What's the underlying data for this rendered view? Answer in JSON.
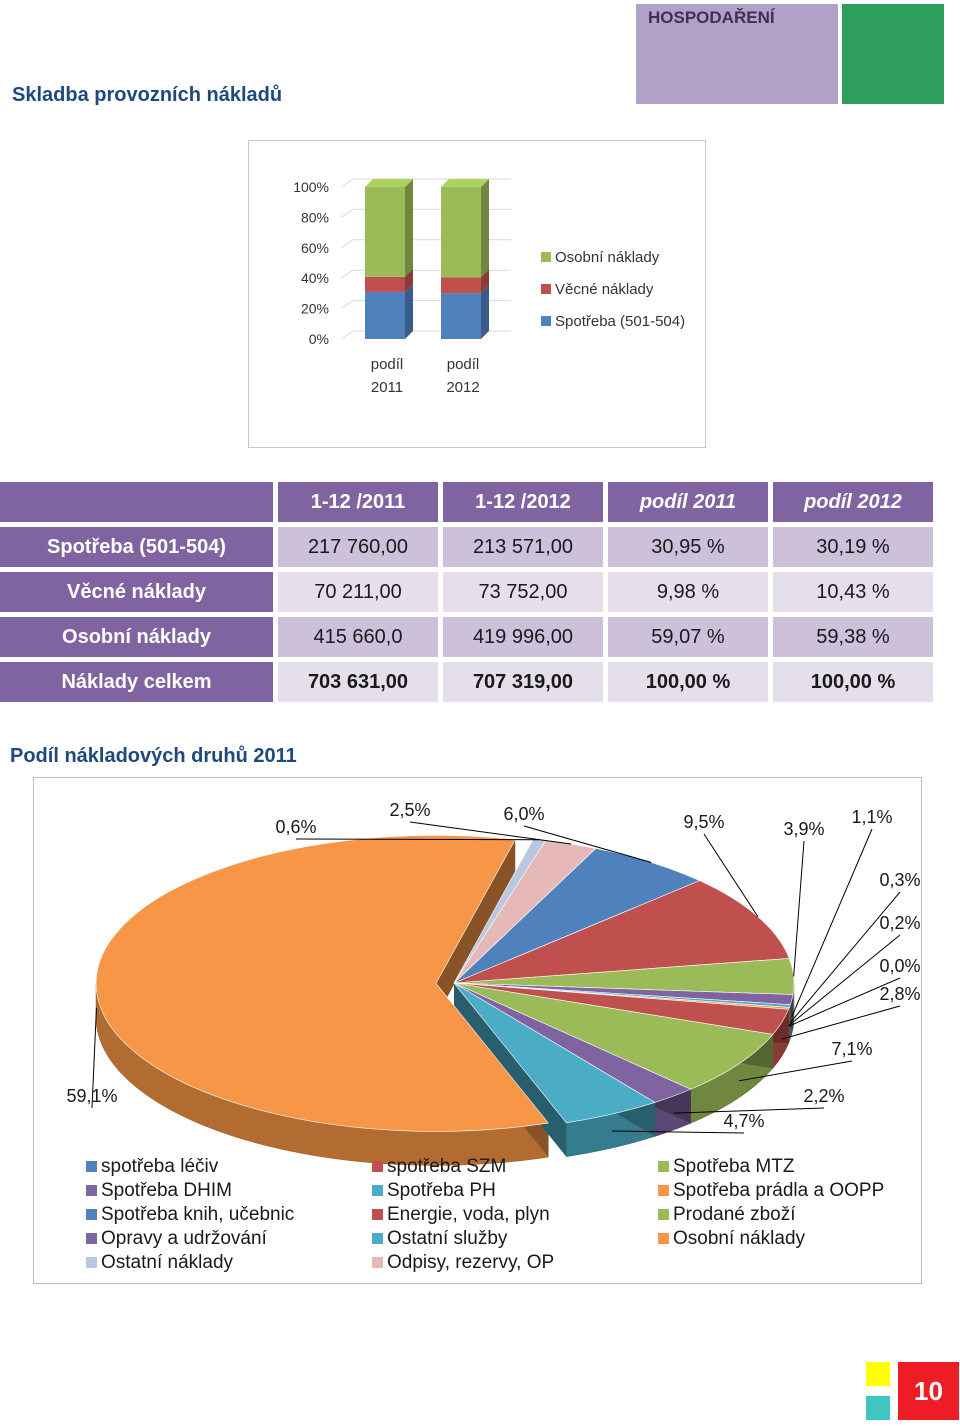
{
  "header": {
    "section": "HOSPODAŘENÍ"
  },
  "titles": {
    "costs": "Skladba provozních nákladů",
    "pie": "Podíl nákladových druhů 2011"
  },
  "chart_data": [
    {
      "type": "bar",
      "stacked": true,
      "percent": true,
      "categories": [
        "podíl 2011",
        "podíl 2012"
      ],
      "category_lines": [
        [
          "podíl",
          "2011"
        ],
        [
          "podíl",
          "2012"
        ]
      ],
      "y_ticks": [
        "100%",
        "80%",
        "60%",
        "40%",
        "20%",
        "0%"
      ],
      "ylim": [
        0,
        100
      ],
      "series": [
        {
          "name": "Spotřeba (501-504)",
          "values": [
            30.95,
            30.19
          ],
          "color": "#4f81bd"
        },
        {
          "name": "Věcné náklady",
          "values": [
            9.98,
            10.43
          ],
          "color": "#c0504d"
        },
        {
          "name": "Osobní náklady",
          "values": [
            59.07,
            59.38
          ],
          "color": "#9bbb59"
        }
      ],
      "legend": [
        "Osobní náklady",
        "Věcné náklady",
        "Spotřeba (501-504)"
      ],
      "legend_position": "right"
    },
    {
      "type": "pie",
      "title": "Podíl nákladových druhů 2011",
      "labels": [
        "spotřeba léčiv",
        "spotřeba SZM",
        "Spotřeba MTZ",
        "Spotřeba DHIM",
        "Spotřeba PH",
        "Spotřeba prádla a OOPP",
        "Spotřeba knih, učebnic",
        "Energie, voda, plyn",
        "Prodané zboží",
        "Opravy a udržování",
        "Ostatní služby",
        "Osobní náklady",
        "Ostatní náklady",
        "Odpisy, rezervy, OP"
      ],
      "values": [
        6.0,
        9.5,
        3.9,
        1.1,
        0.3,
        0.2,
        0.0,
        2.8,
        7.1,
        2.2,
        4.7,
        59.1,
        0.6,
        2.5
      ],
      "value_labels": [
        "6,0%",
        "9,5%",
        "3,9%",
        "1,1%",
        "0,3%",
        "0,2%",
        "0,0%",
        "2,8%",
        "7,1%",
        "2,2%",
        "4,7%",
        "59,1%",
        "0,6%",
        "2,5%"
      ],
      "colors": [
        "#4f81bd",
        "#c0504d",
        "#9bbb59",
        "#8064a2",
        "#4bacc6",
        "#f79646",
        "#4f81bd",
        "#c0504d",
        "#9bbb59",
        "#8064a2",
        "#4bacc6",
        "#f79646",
        "#b9c7e0",
        "#e6b9b8"
      ],
      "legend_position": "bottom"
    }
  ],
  "table": {
    "headers": [
      "",
      "1-12 /2011",
      "1-12 /2012",
      "podíl 2011",
      "podíl 2012"
    ],
    "rows": [
      {
        "label": "Spotřeba (501-504)",
        "v2011": "217 760,00",
        "v2012": "213 571,00",
        "p2011": "30,95 %",
        "p2012": "30,19 %"
      },
      {
        "label": "Věcné náklady",
        "v2011": "70 211,00",
        "v2012": "73 752,00",
        "p2011": "9,98 %",
        "p2012": "10,43 %"
      },
      {
        "label": "Osobní náklady",
        "v2011": "415 660,0",
        "v2012": "419 996,00",
        "p2011": "59,07 %",
        "p2012": "59,38 %"
      },
      {
        "label": "Náklady celkem",
        "v2011": "703 631,00",
        "v2012": "707 319,00",
        "p2011": "100,00 %",
        "p2012": "100,00 %"
      }
    ]
  },
  "page_number": "10"
}
